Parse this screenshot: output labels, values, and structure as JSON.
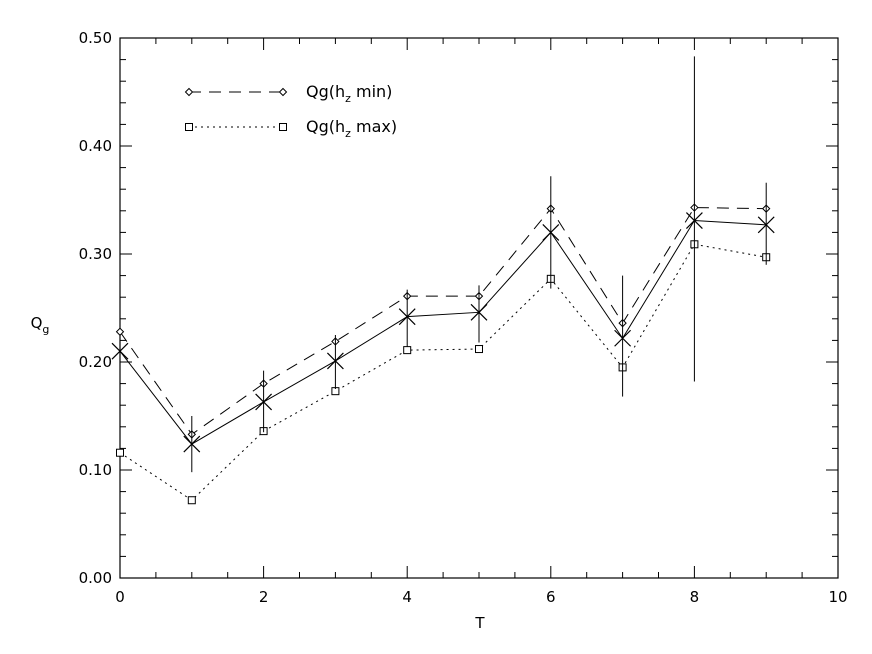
{
  "chart_data": {
    "type": "line",
    "xlabel": "T",
    "ylabel": "Q",
    "ylabel_sub": "g",
    "xlim": [
      0,
      10
    ],
    "ylim": [
      0,
      0.5
    ],
    "x_ticks": [
      "0",
      "2",
      "4",
      "6",
      "8",
      "10"
    ],
    "y_ticks": [
      "0.00",
      "0.10",
      "0.20",
      "0.30",
      "0.40",
      "0.50"
    ],
    "x": [
      0,
      1,
      2,
      3,
      4,
      5,
      6,
      7,
      8,
      9
    ],
    "series": [
      {
        "name": "Qg(h_z min)",
        "legend_main": "Qg(h",
        "legend_sub": "z",
        "legend_tail": " min)",
        "line_style": "dashed",
        "marker": "diamond",
        "values": [
          0.228,
          0.133,
          0.18,
          0.219,
          0.261,
          0.261,
          0.342,
          0.236,
          0.343,
          0.342
        ]
      },
      {
        "name": "Qg(h_z max)",
        "legend_main": "Qg(h",
        "legend_sub": "z",
        "legend_tail": " max)",
        "line_style": "dotted",
        "marker": "square",
        "values": [
          0.116,
          0.072,
          0.136,
          0.173,
          0.211,
          0.212,
          0.277,
          0.195,
          0.309,
          0.297
        ]
      },
      {
        "line_style": "solid",
        "marker": "x",
        "values": [
          0.21,
          0.124,
          0.163,
          0.201,
          0.242,
          0.246,
          0.32,
          0.222,
          0.331,
          0.327
        ],
        "error_low": [
          0.228,
          0.098,
          0.135,
          0.175,
          0.214,
          0.218,
          0.268,
          0.168,
          0.182,
          0.29
        ],
        "error_high": [
          0.228,
          0.15,
          0.192,
          0.225,
          0.267,
          0.271,
          0.372,
          0.28,
          0.483,
          0.366
        ]
      }
    ]
  }
}
